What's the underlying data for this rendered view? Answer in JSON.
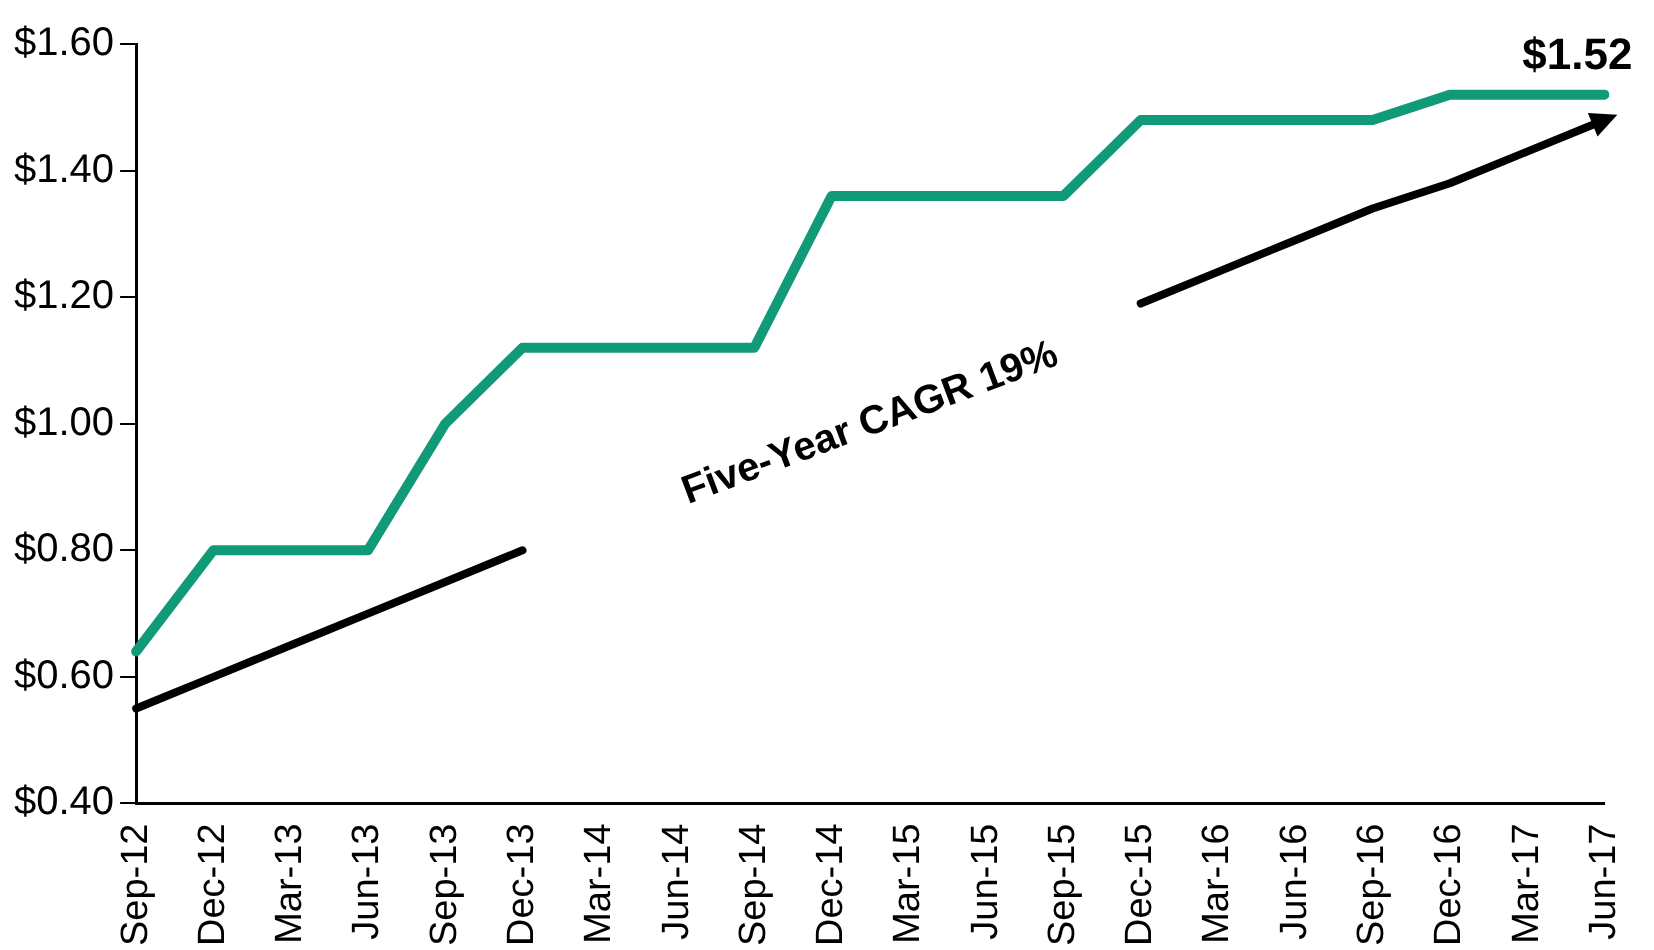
{
  "chart_data": {
    "type": "line",
    "categories": [
      "Sep-12",
      "Dec-12",
      "Mar-13",
      "Jun-13",
      "Sep-13",
      "Dec-13",
      "Mar-14",
      "Jun-14",
      "Sep-14",
      "Dec-14",
      "Mar-15",
      "Jun-15",
      "Sep-15",
      "Dec-15",
      "Mar-16",
      "Jun-16",
      "Sep-16",
      "Dec-16",
      "Mar-17",
      "Jun-17"
    ],
    "series": [
      {
        "color": "#109a78",
        "values": [
          0.64,
          0.8,
          0.8,
          0.8,
          1.0,
          1.12,
          1.12,
          1.12,
          1.12,
          1.36,
          1.36,
          1.36,
          1.36,
          1.48,
          1.48,
          1.48,
          1.48,
          1.52,
          1.52,
          1.52
        ],
        "value_labels": [
          null,
          null,
          null,
          null,
          null,
          null,
          null,
          null,
          null,
          null,
          null,
          null,
          null,
          null,
          null,
          null,
          null,
          null,
          null,
          "$1.52"
        ]
      },
      {
        "type": "line",
        "color": "#000000",
        "values": [
          0.55,
          0.6,
          0.65,
          0.7,
          0.75,
          0.8,
          null,
          null,
          null,
          null,
          null,
          null,
          null,
          1.19,
          1.24,
          1.29,
          1.34,
          1.38,
          1.43,
          1.48
        ]
      }
    ],
    "ylim": [
      0.4,
      1.6
    ],
    "yticks": [
      {
        "value": 0.4,
        "label": "$0.40"
      },
      {
        "value": 0.6,
        "label": "$0.60"
      },
      {
        "value": 0.8,
        "label": "$0.80"
      },
      {
        "value": 1.0,
        "label": "$1.00"
      },
      {
        "value": 1.2,
        "label": "$1.20"
      },
      {
        "value": 1.4,
        "label": "$1.40"
      },
      {
        "value": 1.6,
        "label": "$1.60"
      }
    ],
    "annotations": [
      "Five-Year CAGR 19%"
    ],
    "grid": false,
    "legend": false,
    "marker": "none",
    "line_style": "solid"
  }
}
